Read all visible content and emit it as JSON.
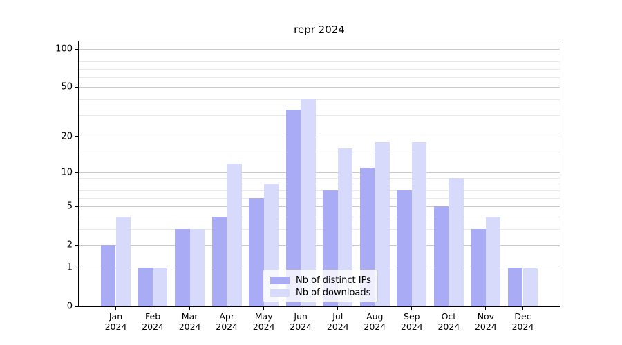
{
  "chart_data": {
    "type": "bar",
    "title": "repr 2024",
    "x_categories": [
      "Jan",
      "Feb",
      "Mar",
      "Apr",
      "May",
      "Jun",
      "Jul",
      "Aug",
      "Sep",
      "Oct",
      "Nov",
      "Dec"
    ],
    "x_year": "2024",
    "series": [
      {
        "name": "Nb of distinct IPs",
        "color": "#a9abf5",
        "values": [
          2,
          1,
          3,
          4,
          6,
          33,
          7,
          11,
          7,
          5,
          3,
          1
        ]
      },
      {
        "name": "Nb of downloads",
        "color": "#d8dafb",
        "values": [
          4,
          1,
          3,
          12,
          8,
          40,
          16,
          18,
          18,
          9,
          4,
          1
        ]
      }
    ],
    "y_axis": {
      "scale": "log1p",
      "major_ticks": [
        0,
        1,
        2,
        5,
        10,
        20,
        50,
        100
      ],
      "minor_gridlines": [
        3,
        4,
        6,
        7,
        8,
        9,
        15,
        30,
        40,
        60,
        70,
        80,
        90
      ],
      "range": [
        0,
        115
      ]
    },
    "legend": {
      "position": "lower-center"
    },
    "colors": {
      "major_grid": "#cbcbcb",
      "minor_grid": "#e8e8e8",
      "axis": "#000000",
      "background": "#ffffff"
    }
  }
}
